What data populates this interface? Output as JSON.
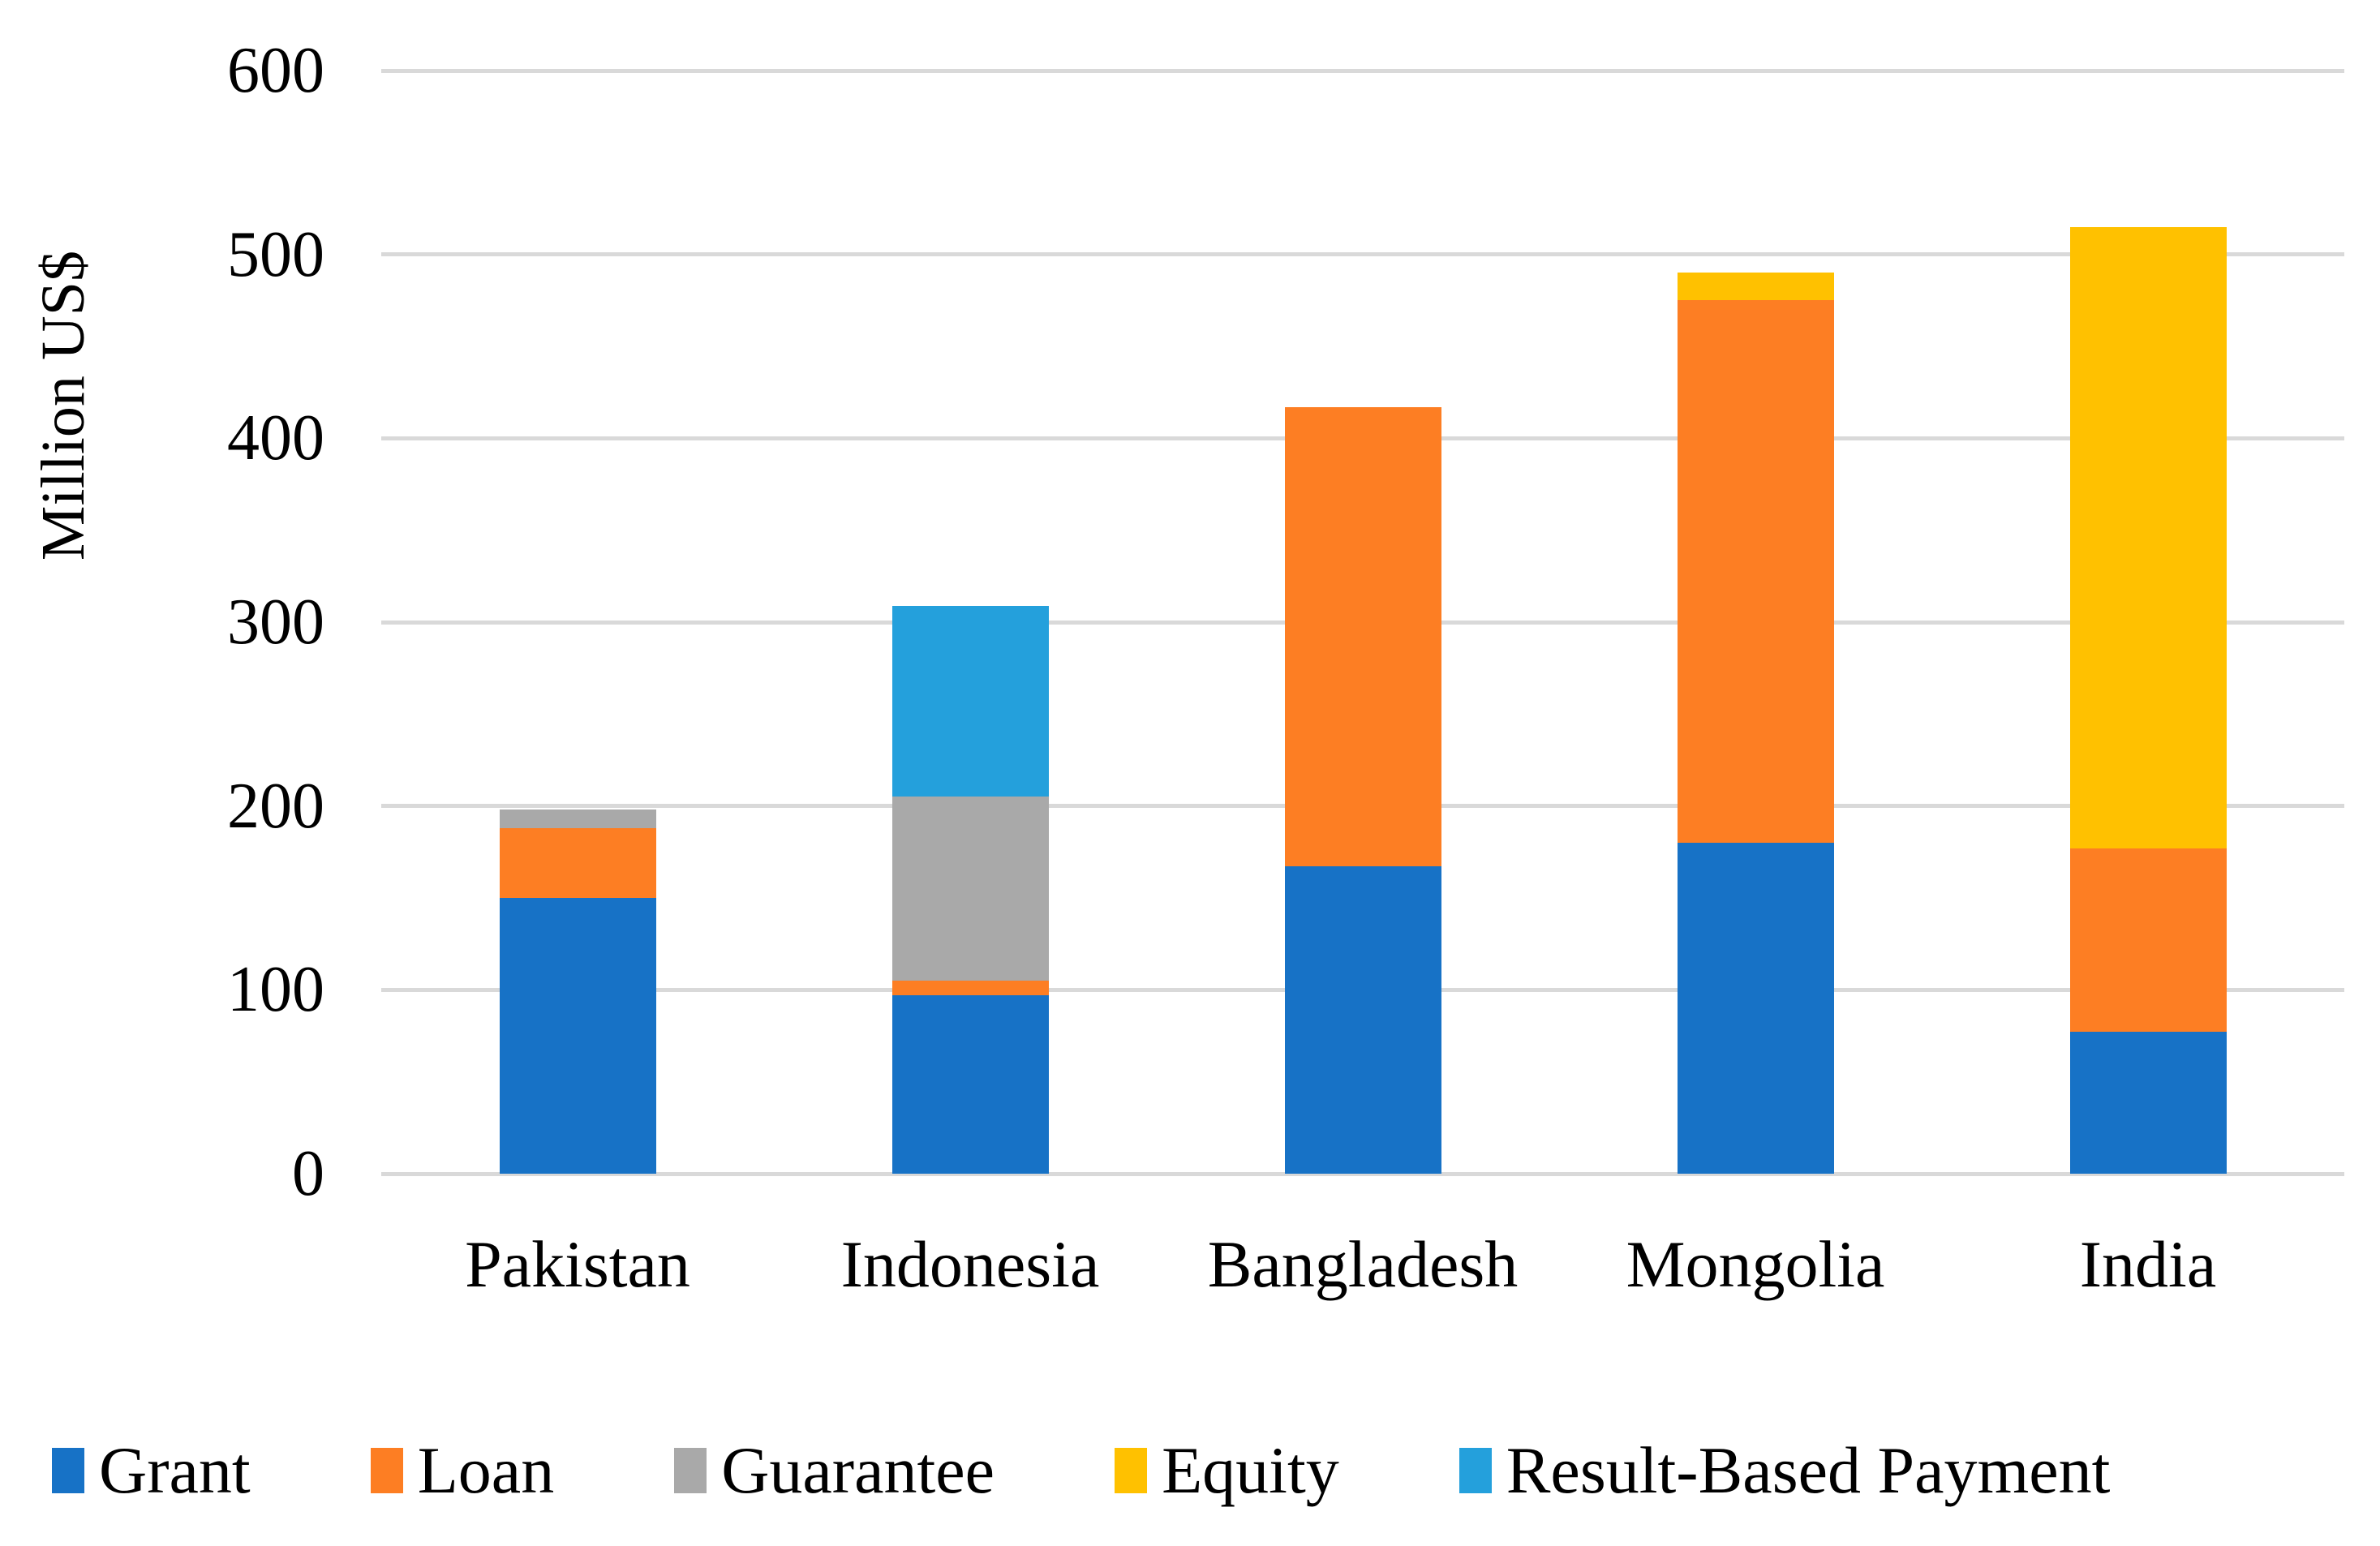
{
  "chart_data": {
    "type": "bar",
    "stacked": true,
    "title": "",
    "xlabel": "",
    "ylabel": "Million US$",
    "ylim": [
      0,
      600
    ],
    "ytick_step": 100,
    "ytick_labels": [
      "0",
      "100",
      "200",
      "300",
      "400",
      "500",
      "600"
    ],
    "grid": true,
    "gridline_color": "#d9d9d9",
    "legend_position": "bottom",
    "categories": [
      "Pakistan",
      "Indonesia",
      "Bangladesh",
      "Mongolia",
      "India"
    ],
    "series": [
      {
        "name": "Grant",
        "color": "#1772c6",
        "values": [
          150,
          97,
          167,
          180,
          77
        ]
      },
      {
        "name": "Loan",
        "color": "#fd7e23",
        "values": [
          38,
          8,
          250,
          295,
          100
        ]
      },
      {
        "name": "Guarantee",
        "color": "#a9a9a9",
        "values": [
          10,
          100,
          0,
          0,
          0
        ]
      },
      {
        "name": "Equity",
        "color": "#ffc100",
        "values": [
          0,
          0,
          0,
          15,
          338
        ]
      },
      {
        "name": "Result-Based Payment",
        "color": "#24a0dc",
        "values": [
          0,
          104,
          0,
          0,
          0
        ]
      }
    ],
    "totals": [
      198,
      309,
      417,
      490,
      515
    ]
  },
  "legend": {
    "items": [
      "Grant",
      "Loan",
      "Guarantee",
      "Equity",
      "Result-Based Payment"
    ]
  }
}
